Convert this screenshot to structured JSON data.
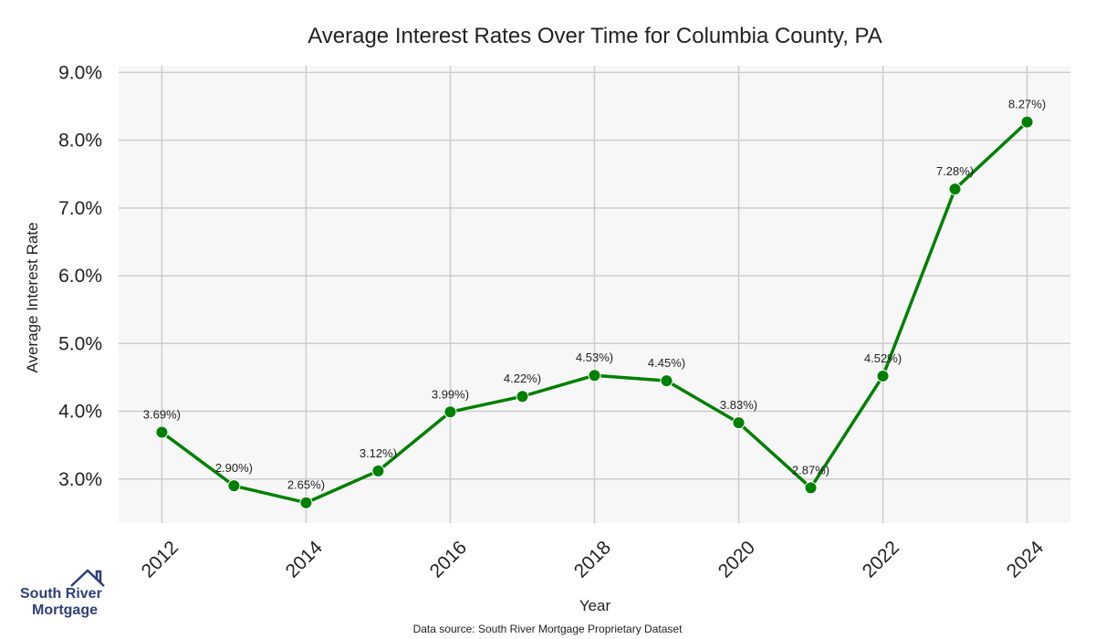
{
  "chart_data": {
    "type": "line",
    "title": "Average Interest Rates Over Time for Columbia County, PA",
    "xlabel": "Year",
    "ylabel": "Average Interest Rate",
    "x": [
      2012,
      2013,
      2014,
      2015,
      2016,
      2017,
      2018,
      2019,
      2020,
      2021,
      2022,
      2023,
      2024
    ],
    "series": [
      {
        "values": [
          3.69,
          2.9,
          2.65,
          3.12,
          3.99,
          4.22,
          4.53,
          4.45,
          3.83,
          2.87,
          4.52,
          7.28,
          8.27
        ],
        "color": "#008000"
      }
    ],
    "data_labels": [
      "3.69%)",
      "2.90%)",
      "2.65%)",
      "3.12%)",
      "3.99%)",
      "4.22%)",
      "4.53%)",
      "4.45%)",
      "3.83%)",
      "2.87%)",
      "4.52%)",
      "7.28%)",
      "8.27%)"
    ],
    "x_ticks": [
      2012,
      2014,
      2016,
      2018,
      2020,
      2022,
      2024
    ],
    "x_tick_labels": [
      "2012",
      "2014",
      "2016",
      "2018",
      "2020",
      "2022",
      "2024"
    ],
    "y_ticks": [
      3,
      4,
      5,
      6,
      7,
      8,
      9
    ],
    "y_tick_labels": [
      "3.0%",
      "4.0%",
      "5.0%",
      "6.0%",
      "7.0%",
      "8.0%",
      "9.0%"
    ],
    "xlim": [
      2011.4,
      2024.6
    ],
    "ylim": [
      2.35,
      9.1
    ],
    "grid": true,
    "plot_background": "#f7f7f7",
    "grid_color": "#cccccc",
    "source_note": "Data source: South River Mortgage Proprietary Dataset"
  },
  "logo": {
    "line1": "South River",
    "line2": "Mortgage",
    "color": "#2f3e7a"
  }
}
